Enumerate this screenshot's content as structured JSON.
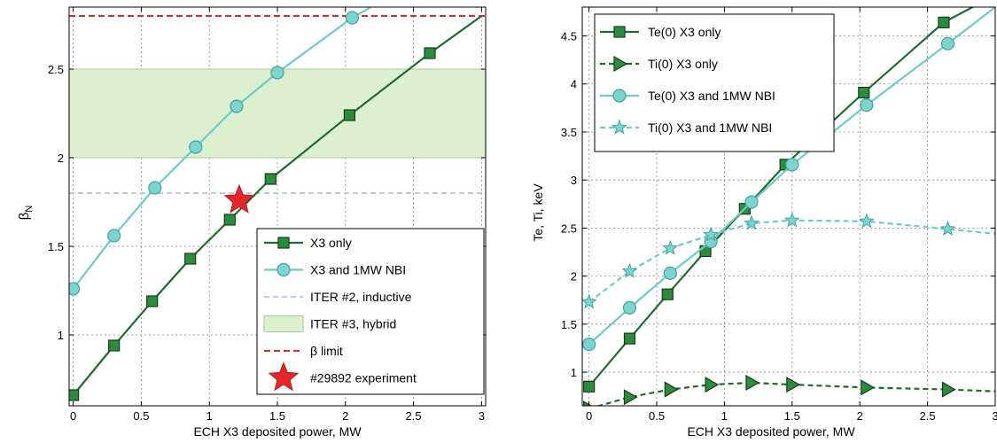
{
  "colors": {
    "dark_green": "#1f6b2f",
    "dark_green_fill": "#2e8b3d",
    "cyan": "#6ccbc7",
    "cyan_fill": "#7fd3cf",
    "iter2": "#b9cbe6",
    "iter3_fill": "#dcefcf",
    "iter3_edge": "#9bd08a",
    "beta_limit": "#e3262b",
    "star": "#e3262b",
    "star_edge": "#b01f22"
  },
  "chart_data": [
    {
      "type": "line",
      "xlabel": "ECH X3 deposited power, MW",
      "ylabel": "β",
      "ylabel_sub": "N",
      "xlim": [
        -0.03,
        3.03
      ],
      "ylim": [
        0.6,
        2.85
      ],
      "xticks": [
        0,
        0.5,
        1,
        1.5,
        2,
        2.5,
        3
      ],
      "xtick_labels": [
        "0",
        "0.5",
        "1",
        "1.5",
        "2",
        "2.5",
        "3"
      ],
      "yticks": [
        1,
        1.5,
        2,
        2.5
      ],
      "ytick_labels": [
        "1",
        "1.5",
        "2",
        "2.5"
      ],
      "grid": true,
      "legend_position": "bottom-right",
      "series": [
        {
          "name": "X3 only",
          "style": "solid",
          "color": "dark_green",
          "marker": "square",
          "x": [
            0,
            0.3,
            0.58,
            0.86,
            1.15,
            1.45,
            2.03,
            2.62,
            3.0
          ],
          "y": [
            0.66,
            0.94,
            1.19,
            1.43,
            1.65,
            1.88,
            2.24,
            2.59,
            2.8
          ],
          "marker_mask": [
            1,
            1,
            1,
            1,
            1,
            1,
            1,
            1,
            0
          ]
        },
        {
          "name": "X3 and 1MW NBI",
          "style": "solid",
          "color": "cyan",
          "marker": "circle",
          "x": [
            0,
            0.3,
            0.6,
            0.9,
            1.2,
            1.5,
            2.05,
            2.3
          ],
          "y": [
            1.26,
            1.56,
            1.83,
            2.06,
            2.29,
            2.48,
            2.79,
            2.9
          ],
          "marker_mask": [
            1,
            1,
            1,
            1,
            1,
            1,
            1,
            0
          ]
        }
      ],
      "bands": [
        {
          "name": "ITER #3, hybrid",
          "y0": 2.0,
          "y1": 2.5
        }
      ],
      "hlines": [
        {
          "name": "ITER #2, inductive",
          "y": 1.8,
          "style": "dashed",
          "color": "iter2"
        },
        {
          "name": "β limit",
          "y": 2.8,
          "style": "dashed",
          "color": "beta_limit"
        }
      ],
      "points": [
        {
          "name": "#29892 experiment",
          "x": 1.22,
          "y": 1.76,
          "marker": "star"
        }
      ],
      "legend": [
        {
          "label": "X3 only",
          "kind": "line-square"
        },
        {
          "label": "X3 and 1MW NBI",
          "kind": "line-circle"
        },
        {
          "label": "ITER #2, inductive",
          "kind": "iter2"
        },
        {
          "label": "ITER #3, hybrid",
          "kind": "band"
        },
        {
          "label": "β limit",
          "kind": "beta"
        },
        {
          "label": "#29892 experiment",
          "kind": "star"
        }
      ]
    },
    {
      "type": "line",
      "xlabel": "ECH X3 deposited power, MW",
      "ylabel": "Te, Ti, keV",
      "xlim": [
        -0.05,
        3.0
      ],
      "ylim": [
        0.65,
        4.8
      ],
      "xticks": [
        0,
        0.5,
        1,
        1.5,
        2,
        2.5,
        3
      ],
      "xtick_labels": [
        "0",
        "0.5",
        "1",
        "1.5",
        "2",
        "2.5",
        "3"
      ],
      "yticks": [
        1,
        1.5,
        2,
        2.5,
        3,
        3.5,
        4,
        4.5
      ],
      "ytick_labels": [
        "1",
        "1.5",
        "2",
        "2.5",
        "3",
        "3.5",
        "4",
        "4.5"
      ],
      "grid": true,
      "legend_position": "top-left",
      "series": [
        {
          "name": "Te(0) X3 only",
          "style": "solid",
          "color": "dark_green",
          "marker": "square",
          "x": [
            0,
            0.3,
            0.58,
            0.86,
            1.15,
            1.45,
            2.03,
            2.62,
            2.9
          ],
          "y": [
            0.85,
            1.35,
            1.81,
            2.26,
            2.7,
            3.16,
            3.91,
            4.64,
            4.85
          ],
          "marker_mask": [
            1,
            1,
            1,
            1,
            1,
            1,
            1,
            1,
            0
          ]
        },
        {
          "name": "Ti(0) X3 only",
          "style": "dashed",
          "color": "dark_green",
          "marker": "triangle",
          "x": [
            0,
            0.3,
            0.6,
            0.9,
            1.2,
            1.5,
            2.05,
            2.65,
            3.0
          ],
          "y": [
            0.62,
            0.74,
            0.82,
            0.87,
            0.89,
            0.87,
            0.84,
            0.82,
            0.8
          ],
          "marker_mask": [
            1,
            1,
            1,
            1,
            1,
            1,
            1,
            1,
            0
          ]
        },
        {
          "name": "Te(0) X3 and 1MW NBI",
          "style": "solid",
          "color": "cyan",
          "marker": "circle",
          "x": [
            0,
            0.3,
            0.6,
            0.9,
            1.2,
            1.5,
            2.05,
            2.65,
            3.0
          ],
          "y": [
            1.29,
            1.67,
            2.03,
            2.36,
            2.77,
            3.16,
            3.78,
            4.42,
            4.8
          ],
          "marker_mask": [
            1,
            1,
            1,
            1,
            1,
            1,
            1,
            1,
            0
          ]
        },
        {
          "name": "Ti(0) X3 and 1MW NBI",
          "style": "dashed",
          "color": "cyan",
          "marker": "star5",
          "x": [
            0,
            0.3,
            0.6,
            0.9,
            1.2,
            1.5,
            2.05,
            2.65,
            3.0
          ],
          "y": [
            1.73,
            2.05,
            2.29,
            2.43,
            2.55,
            2.58,
            2.57,
            2.49,
            2.44
          ],
          "marker_mask": [
            1,
            1,
            1,
            1,
            1,
            1,
            1,
            1,
            0
          ]
        }
      ],
      "legend": [
        {
          "label": "Te(0) X3 only",
          "kind": "line-square"
        },
        {
          "label": "Ti(0) X3 only",
          "kind": "dash-triangle"
        },
        {
          "label": "Te(0) X3 and 1MW NBI",
          "kind": "line-circle"
        },
        {
          "label": "Ti(0) X3 and 1MW NBI",
          "kind": "dash-star"
        }
      ]
    }
  ]
}
